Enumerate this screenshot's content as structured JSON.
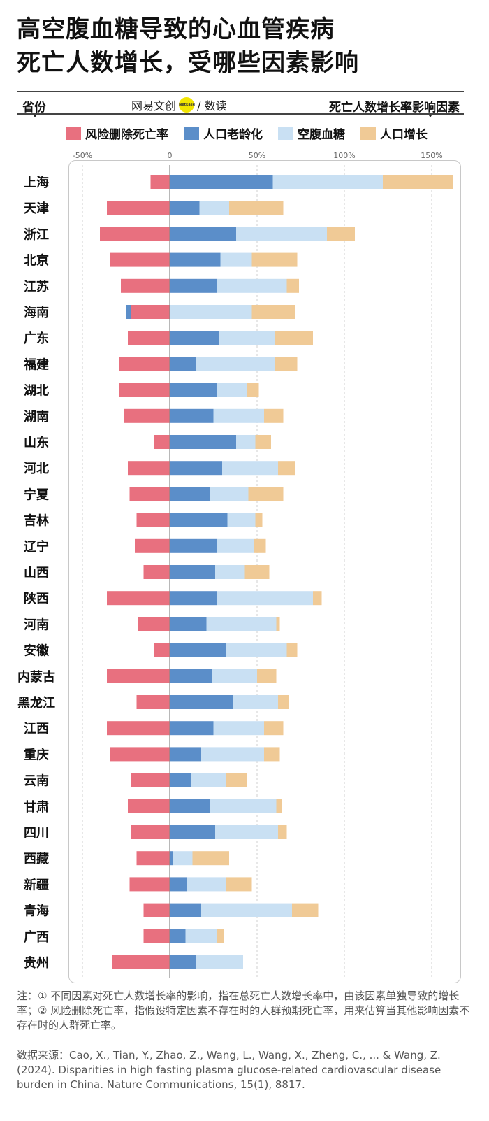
{
  "title": {
    "line1": "高空腹血糖导致的心血管疾病",
    "line2": "死亡人数增长，受哪些因素影响"
  },
  "header": {
    "left_label": "省份",
    "right_label": "死亡人数增长率影响因素",
    "brand_text": "网易文创",
    "brand_logo_text": "NetEase",
    "brand_suffix": "/ 数读"
  },
  "chart_data": {
    "type": "bar",
    "orientation": "horizontal",
    "stacked": true,
    "unit": "%",
    "xlim": [
      -50,
      160
    ],
    "xticks": [
      -50,
      0,
      50,
      100,
      150
    ],
    "xtick_labels": [
      "-50%",
      "0",
      "50%",
      "100%",
      "150%"
    ],
    "categories": [
      "上海",
      "天津",
      "浙江",
      "北京",
      "江苏",
      "海南",
      "广东",
      "福建",
      "湖北",
      "湖南",
      "山东",
      "河北",
      "宁夏",
      "吉林",
      "辽宁",
      "山西",
      "陕西",
      "河南",
      "安徽",
      "内蒙古",
      "黑龙江",
      "江西",
      "重庆",
      "云南",
      "甘肃",
      "四川",
      "西藏",
      "新疆",
      "青海",
      "广西",
      "贵州"
    ],
    "series": [
      {
        "name": "风险删除死亡率",
        "color": "#e8707f",
        "values": [
          -11,
          -36,
          -40,
          -34,
          -28,
          -22,
          -24,
          -29,
          -29,
          -26,
          -9,
          -24,
          -23,
          -19,
          -20,
          -15,
          -36,
          -18,
          -9,
          -36,
          -19,
          -36,
          -34,
          -22,
          -24,
          -22,
          -19,
          -23,
          -15,
          -15,
          -33
        ]
      },
      {
        "name": "人口老龄化",
        "color": "#5b8ec9",
        "values": [
          59,
          17,
          38,
          29,
          27,
          -3,
          28,
          15,
          27,
          25,
          38,
          30,
          23,
          33,
          27,
          26,
          27,
          21,
          32,
          24,
          36,
          25,
          18,
          12,
          23,
          26,
          2,
          10,
          18,
          9,
          15
        ]
      },
      {
        "name": "空腹血糖",
        "color": "#c9e0f3",
        "values": [
          63,
          17,
          52,
          18,
          40,
          47,
          32,
          45,
          17,
          29,
          11,
          32,
          22,
          16,
          21,
          17,
          55,
          40,
          35,
          26,
          26,
          29,
          36,
          20,
          38,
          36,
          11,
          22,
          52,
          18,
          27
        ]
      },
      {
        "name": "人口增长",
        "color": "#f0ca96",
        "values": [
          40,
          31,
          16,
          26,
          7,
          25,
          22,
          13,
          7,
          11,
          9,
          10,
          20,
          4,
          7,
          14,
          5,
          2,
          6,
          11,
          6,
          11,
          9,
          12,
          3,
          5,
          21,
          15,
          15,
          4,
          0
        ]
      }
    ]
  },
  "notes": {
    "line1": "注：① 不同因素对死亡人数增长率的影响，指在总死亡人数增长率中，由该因素单独导致的增长率；② 风险删除死亡率，指假设特定因素不存在时的人群预期死亡率，用来估算当其他影响因素不存在时的人群死亡率。",
    "source": "数据来源：Cao, X., Tian, Y., Zhao, Z., Wang, L., Wang, X., Zheng, C., ... & Wang, Z. (2024). Disparities in high fasting plasma glucose-related cardiovascular disease burden in China. Nature Communications, 15(1), 8817."
  },
  "colors": {
    "risk": "#e8707f",
    "aging": "#5b8ec9",
    "glucose": "#c9e0f3",
    "growth": "#f0ca96",
    "zero_line": "#888888",
    "grid": "#cfcfcf"
  }
}
